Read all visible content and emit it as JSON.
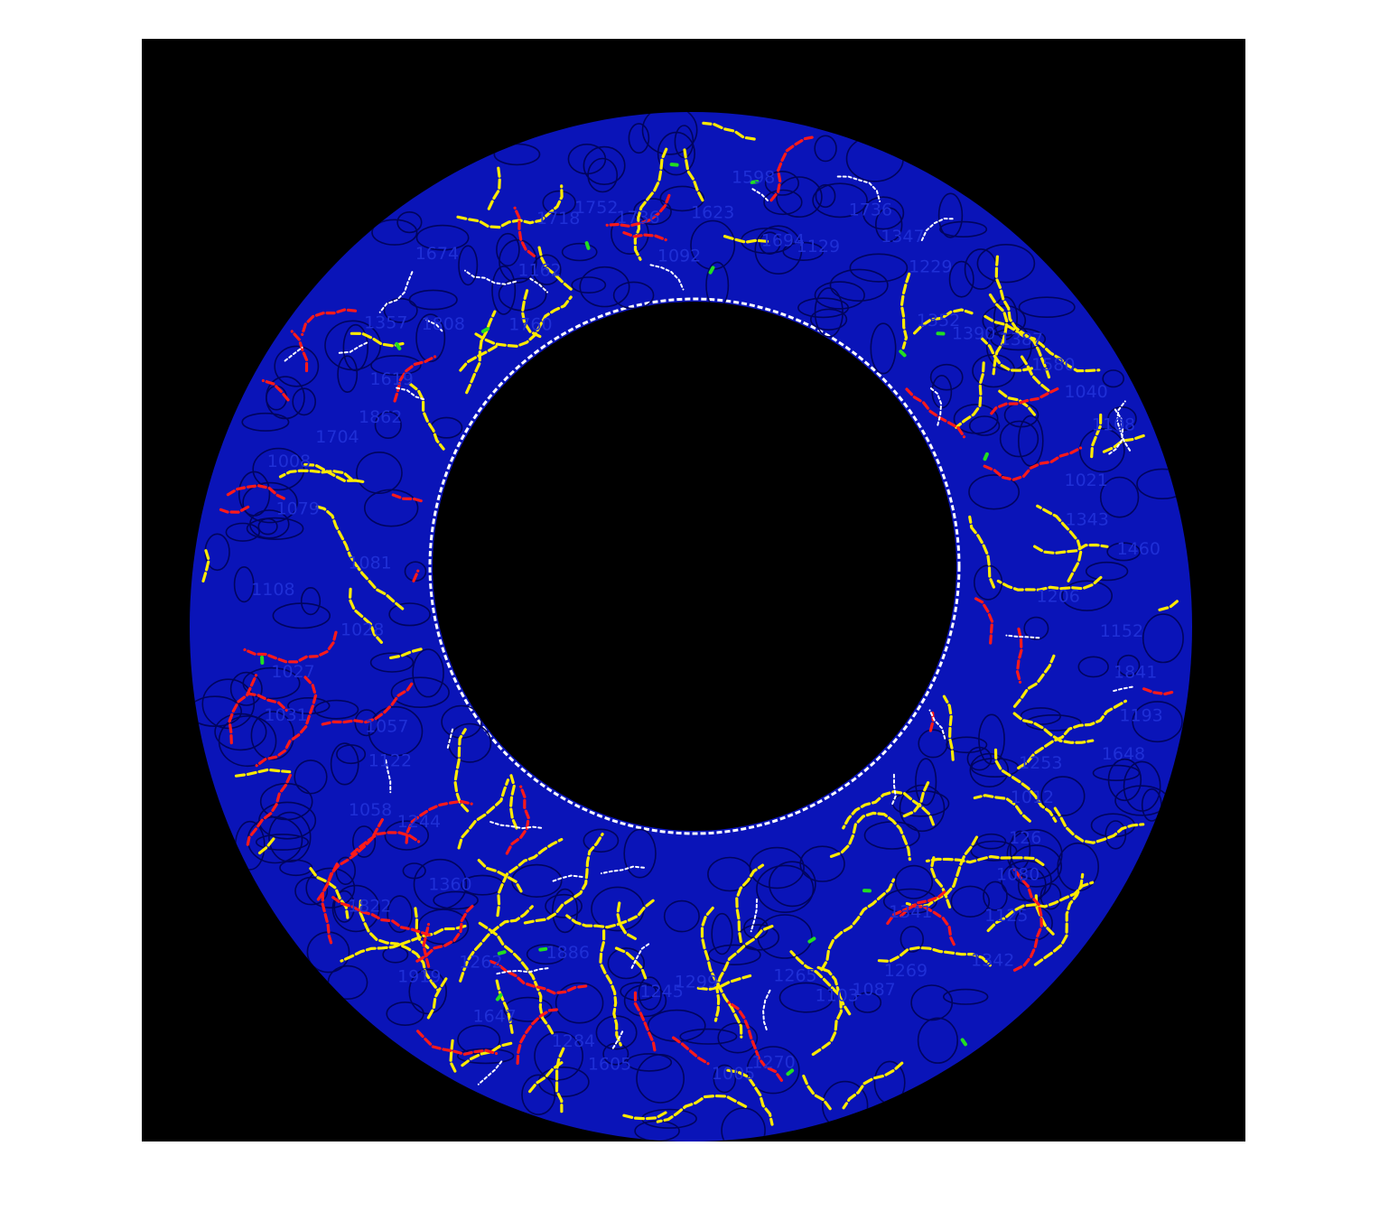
{
  "figure": {
    "background_color": "#000000",
    "ring_fill_color": "#0a14b8",
    "edge_colors": {
      "primary": "#ffea00",
      "secondary": "#ff1a1a",
      "marker": "#22dd22",
      "boundary": "#ffffff"
    },
    "label_color": "#1f2fd6",
    "visible_labels": [
      "1623",
      "1598",
      "1694",
      "1129",
      "1736",
      "1347",
      "1229",
      "1352",
      "1390",
      "1387",
      "1580",
      "1040",
      "1108",
      "1021",
      "1343",
      "1460",
      "1206",
      "1152",
      "1841",
      "1193",
      "1648",
      "1253",
      "1012",
      "126",
      "1080",
      "1125",
      "1342",
      "1341",
      "1269",
      "1087",
      "1103",
      "1265",
      "1270",
      "1005",
      "1299",
      "1245",
      "1605",
      "1284",
      "1886",
      "1647",
      "1262",
      "1919",
      "1360",
      "1822",
      "1244",
      "1058",
      "1122",
      "1057",
      "1031",
      "1027",
      "1028",
      "1108",
      "1081",
      "1079",
      "1008",
      "1704",
      "1862",
      "1619",
      "1357",
      "1808",
      "1674",
      "1760",
      "1162",
      "1718",
      "1752",
      "1736",
      "1092"
    ]
  }
}
